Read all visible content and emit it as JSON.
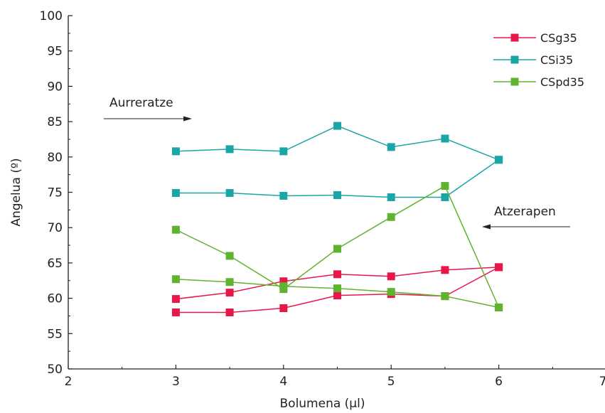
{
  "chart_data": {
    "type": "line",
    "title": "",
    "xlabel": "Bolumena (µl)",
    "ylabel": "Angelua (º)",
    "xlim": [
      2,
      7
    ],
    "ylim": [
      50,
      100
    ],
    "xticks": [
      "2",
      "3",
      "4",
      "5",
      "6",
      "7"
    ],
    "yticks": [
      "50",
      "55",
      "60",
      "65",
      "70",
      "75",
      "80",
      "85",
      "90",
      "95",
      "100"
    ],
    "grid": false,
    "legend_position": "top-right",
    "series": [
      {
        "name": "CSg35",
        "color": "#e8174a",
        "marker": "square",
        "advancing": {
          "x": [
            3,
            3.5,
            4,
            4.5,
            5,
            5.5,
            6
          ],
          "y": [
            59.9,
            60.8,
            62.4,
            63.4,
            63.1,
            64.0,
            64.4
          ]
        },
        "receding": {
          "x": [
            3,
            3.5,
            4,
            4.5,
            5,
            5.5,
            6
          ],
          "y": [
            58.0,
            58.0,
            58.6,
            60.4,
            60.6,
            60.3,
            64.4
          ]
        }
      },
      {
        "name": "CSi35",
        "color": "#1aa6a6",
        "marker": "square",
        "advancing": {
          "x": [
            3,
            3.5,
            4,
            4.5,
            5,
            5.5,
            6
          ],
          "y": [
            80.8,
            81.1,
            80.8,
            84.4,
            81.4,
            82.6,
            79.6
          ]
        },
        "receding": {
          "x": [
            3,
            3.5,
            4,
            4.5,
            5,
            5.5,
            6
          ],
          "y": [
            74.9,
            74.9,
            74.5,
            74.6,
            74.3,
            74.3,
            79.6
          ]
        }
      },
      {
        "name": "CSpd35",
        "color": "#5fb32e",
        "marker": "square",
        "advancing": {
          "x": [
            3,
            3.5,
            4,
            4.5,
            5,
            5.5,
            6
          ],
          "y": [
            69.7,
            66.0,
            61.3,
            67.0,
            71.5,
            75.9,
            58.7
          ]
        },
        "receding": {
          "x": [
            3,
            3.5,
            4,
            4.5,
            5,
            5.5,
            6
          ],
          "y": [
            62.7,
            62.3,
            61.7,
            61.4,
            60.9,
            60.3,
            58.7
          ]
        }
      }
    ],
    "annotations": [
      {
        "text": "Aurreratze",
        "arrow": "right",
        "y": 85.5
      },
      {
        "text": "Atzerapen",
        "arrow": "left",
        "y": 70.2
      }
    ]
  }
}
